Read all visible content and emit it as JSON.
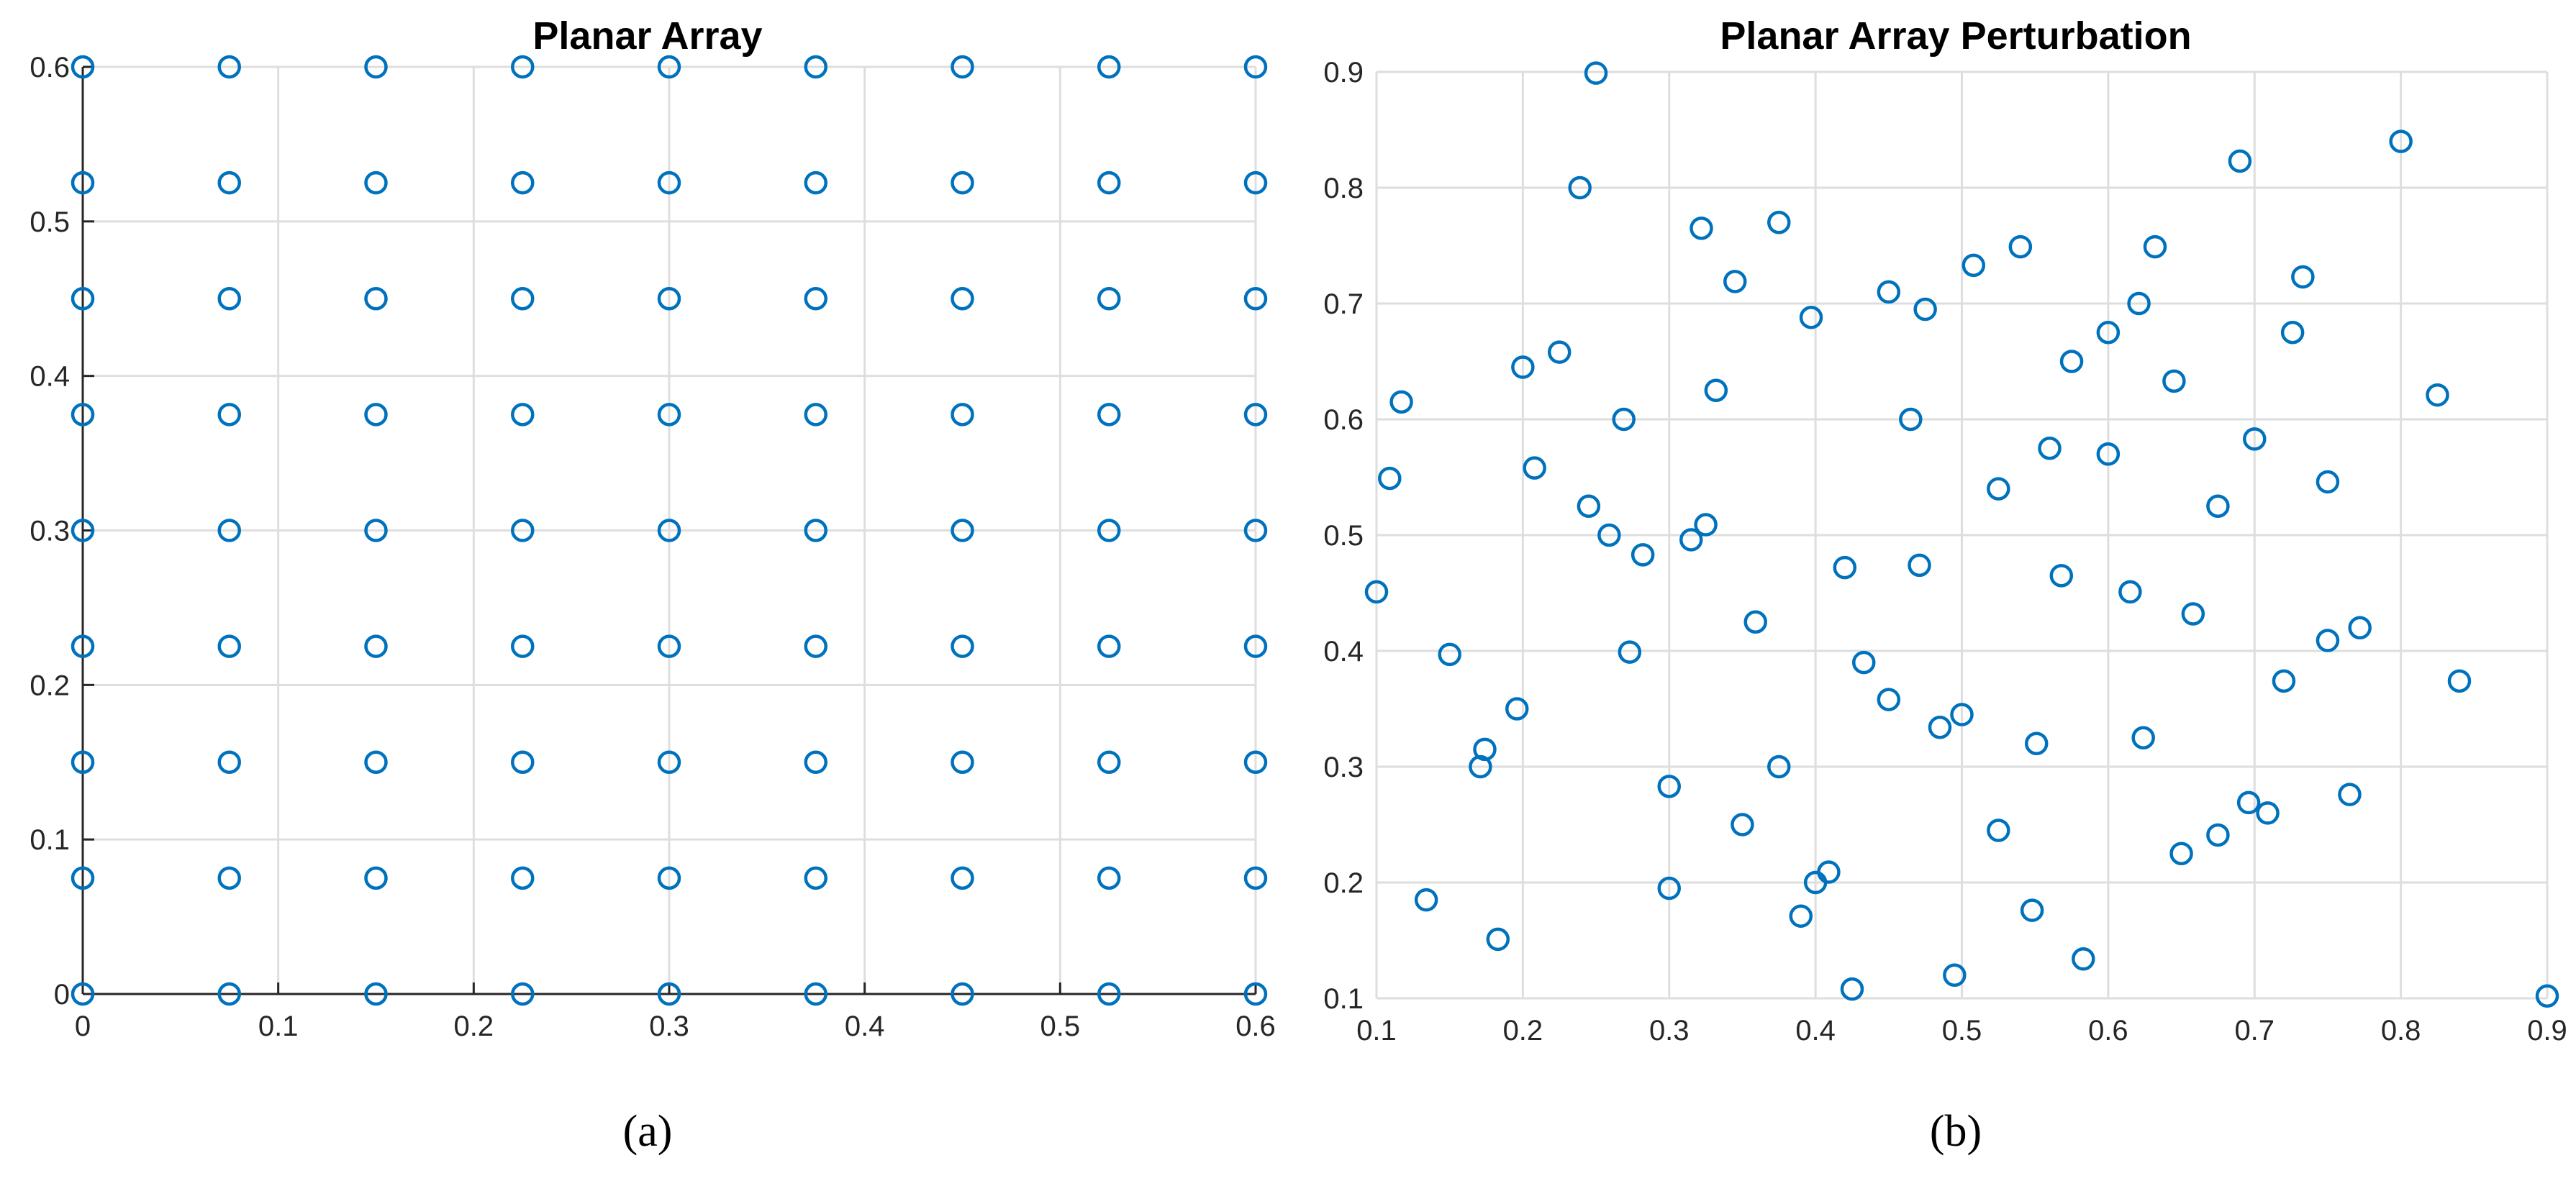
{
  "chart_data": [
    {
      "type": "scatter",
      "title": "Planar Array",
      "xlabel": "",
      "ylabel": "",
      "xlim": [
        0,
        0.6
      ],
      "ylim": [
        0,
        0.6
      ],
      "xticks": [
        "0",
        "0.1",
        "0.2",
        "0.3",
        "0.4",
        "0.5",
        "0.6"
      ],
      "yticks": [
        "0",
        "0.1",
        "0.2",
        "0.3",
        "0.4",
        "0.5",
        "0.6"
      ],
      "grid": true,
      "marker": "circle",
      "color": "#0072BD",
      "caption": "(a)",
      "points": [
        [
          0,
          0
        ],
        [
          0.075,
          0
        ],
        [
          0.15,
          0
        ],
        [
          0.225,
          0
        ],
        [
          0.3,
          0
        ],
        [
          0.375,
          0
        ],
        [
          0.45,
          0
        ],
        [
          0.525,
          0
        ],
        [
          0.6,
          0
        ],
        [
          0,
          0.075
        ],
        [
          0.075,
          0.075
        ],
        [
          0.15,
          0.075
        ],
        [
          0.225,
          0.075
        ],
        [
          0.3,
          0.075
        ],
        [
          0.375,
          0.075
        ],
        [
          0.45,
          0.075
        ],
        [
          0.525,
          0.075
        ],
        [
          0.6,
          0.075
        ],
        [
          0,
          0.15
        ],
        [
          0.075,
          0.15
        ],
        [
          0.15,
          0.15
        ],
        [
          0.225,
          0.15
        ],
        [
          0.3,
          0.15
        ],
        [
          0.375,
          0.15
        ],
        [
          0.45,
          0.15
        ],
        [
          0.525,
          0.15
        ],
        [
          0.6,
          0.15
        ],
        [
          0,
          0.225
        ],
        [
          0.075,
          0.225
        ],
        [
          0.15,
          0.225
        ],
        [
          0.225,
          0.225
        ],
        [
          0.3,
          0.225
        ],
        [
          0.375,
          0.225
        ],
        [
          0.45,
          0.225
        ],
        [
          0.525,
          0.225
        ],
        [
          0.6,
          0.225
        ],
        [
          0,
          0.3
        ],
        [
          0.075,
          0.3
        ],
        [
          0.15,
          0.3
        ],
        [
          0.225,
          0.3
        ],
        [
          0.3,
          0.3
        ],
        [
          0.375,
          0.3
        ],
        [
          0.45,
          0.3
        ],
        [
          0.525,
          0.3
        ],
        [
          0.6,
          0.3
        ],
        [
          0,
          0.375
        ],
        [
          0.075,
          0.375
        ],
        [
          0.15,
          0.375
        ],
        [
          0.225,
          0.375
        ],
        [
          0.3,
          0.375
        ],
        [
          0.375,
          0.375
        ],
        [
          0.45,
          0.375
        ],
        [
          0.525,
          0.375
        ],
        [
          0.6,
          0.375
        ],
        [
          0,
          0.45
        ],
        [
          0.075,
          0.45
        ],
        [
          0.15,
          0.45
        ],
        [
          0.225,
          0.45
        ],
        [
          0.3,
          0.45
        ],
        [
          0.375,
          0.45
        ],
        [
          0.45,
          0.45
        ],
        [
          0.525,
          0.45
        ],
        [
          0.6,
          0.45
        ],
        [
          0,
          0.525
        ],
        [
          0.075,
          0.525
        ],
        [
          0.15,
          0.525
        ],
        [
          0.225,
          0.525
        ],
        [
          0.3,
          0.525
        ],
        [
          0.375,
          0.525
        ],
        [
          0.45,
          0.525
        ],
        [
          0.525,
          0.525
        ],
        [
          0.6,
          0.525
        ],
        [
          0,
          0.6
        ],
        [
          0.075,
          0.6
        ],
        [
          0.15,
          0.6
        ],
        [
          0.225,
          0.6
        ],
        [
          0.3,
          0.6
        ],
        [
          0.375,
          0.6
        ],
        [
          0.45,
          0.6
        ],
        [
          0.525,
          0.6
        ],
        [
          0.6,
          0.6
        ]
      ]
    },
    {
      "type": "scatter",
      "title": "Planar Array Perturbation",
      "xlabel": "",
      "ylabel": "",
      "xlim": [
        0.1,
        0.9
      ],
      "ylim": [
        0.1,
        0.9
      ],
      "xticks": [
        "0.1",
        "0.2",
        "0.3",
        "0.4",
        "0.5",
        "0.6",
        "0.7",
        "0.8",
        "0.9"
      ],
      "yticks": [
        "0.1",
        "0.2",
        "0.3",
        "0.4",
        "0.5",
        "0.6",
        "0.7",
        "0.8",
        "0.9"
      ],
      "grid": true,
      "marker": "circle",
      "color": "#0072BD",
      "caption": "(b)",
      "points": [
        [
          0.25,
          0.899
        ],
        [
          0.8,
          0.84
        ],
        [
          0.69,
          0.823
        ],
        [
          0.239,
          0.8
        ],
        [
          0.375,
          0.77
        ],
        [
          0.322,
          0.765
        ],
        [
          0.54,
          0.749
        ],
        [
          0.632,
          0.749
        ],
        [
          0.508,
          0.733
        ],
        [
          0.733,
          0.723
        ],
        [
          0.345,
          0.719
        ],
        [
          0.45,
          0.71
        ],
        [
          0.621,
          0.7
        ],
        [
          0.475,
          0.695
        ],
        [
          0.397,
          0.688
        ],
        [
          0.6,
          0.675
        ],
        [
          0.726,
          0.675
        ],
        [
          0.225,
          0.658
        ],
        [
          0.575,
          0.65
        ],
        [
          0.2,
          0.645
        ],
        [
          0.645,
          0.633
        ],
        [
          0.332,
          0.625
        ],
        [
          0.825,
          0.621
        ],
        [
          0.117,
          0.615
        ],
        [
          0.269,
          0.6
        ],
        [
          0.465,
          0.6
        ],
        [
          0.7,
          0.583
        ],
        [
          0.56,
          0.575
        ],
        [
          0.6,
          0.57
        ],
        [
          0.208,
          0.558
        ],
        [
          0.109,
          0.549
        ],
        [
          0.75,
          0.546
        ],
        [
          0.525,
          0.54
        ],
        [
          0.245,
          0.525
        ],
        [
          0.675,
          0.525
        ],
        [
          0.325,
          0.509
        ],
        [
          0.259,
          0.5
        ],
        [
          0.315,
          0.496
        ],
        [
          0.282,
          0.483
        ],
        [
          0.42,
          0.472
        ],
        [
          0.471,
          0.474
        ],
        [
          0.568,
          0.465
        ],
        [
          0.1,
          0.451
        ],
        [
          0.615,
          0.451
        ],
        [
          0.658,
          0.432
        ],
        [
          0.359,
          0.425
        ],
        [
          0.772,
          0.42
        ],
        [
          0.75,
          0.409
        ],
        [
          0.15,
          0.397
        ],
        [
          0.273,
          0.399
        ],
        [
          0.433,
          0.39
        ],
        [
          0.72,
          0.374
        ],
        [
          0.84,
          0.374
        ],
        [
          0.45,
          0.358
        ],
        [
          0.196,
          0.35
        ],
        [
          0.5,
          0.345
        ],
        [
          0.485,
          0.334
        ],
        [
          0.624,
          0.325
        ],
        [
          0.551,
          0.32
        ],
        [
          0.174,
          0.315
        ],
        [
          0.171,
          0.3
        ],
        [
          0.375,
          0.3
        ],
        [
          0.3,
          0.283
        ],
        [
          0.765,
          0.276
        ],
        [
          0.696,
          0.269
        ],
        [
          0.709,
          0.26
        ],
        [
          0.35,
          0.25
        ],
        [
          0.525,
          0.245
        ],
        [
          0.675,
          0.241
        ],
        [
          0.65,
          0.225
        ],
        [
          0.409,
          0.209
        ],
        [
          0.4,
          0.2
        ],
        [
          0.3,
          0.195
        ],
        [
          0.134,
          0.185
        ],
        [
          0.548,
          0.176
        ],
        [
          0.39,
          0.171
        ],
        [
          0.183,
          0.151
        ],
        [
          0.583,
          0.134
        ],
        [
          0.495,
          0.12
        ],
        [
          0.425,
          0.108
        ],
        [
          0.9,
          0.102
        ]
      ]
    }
  ]
}
